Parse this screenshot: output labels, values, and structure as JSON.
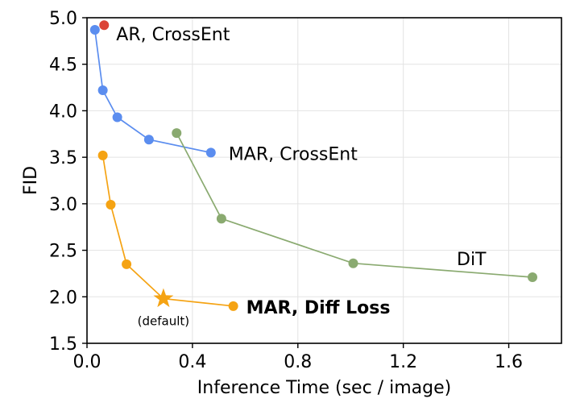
{
  "chart_data": {
    "type": "line",
    "xlabel": "Inference Time (sec / image)",
    "ylabel": "FID",
    "xlim": [
      0.0,
      1.8
    ],
    "ylim": [
      1.5,
      5.0
    ],
    "xticks": [
      "0.0",
      "0.4",
      "0.8",
      "1.2",
      "1.6"
    ],
    "yticks": [
      "1.5",
      "2.0",
      "2.5",
      "3.0",
      "3.5",
      "4.0",
      "4.5",
      "5.0"
    ],
    "grid": true,
    "series": [
      {
        "name": "AR, CrossEnt",
        "color": "#db4437",
        "label_weight": "normal",
        "points": [
          [
            0.065,
            4.92
          ]
        ]
      },
      {
        "name": "MAR, CrossEnt",
        "color": "#5b8def",
        "label_weight": "normal",
        "points": [
          [
            0.03,
            4.87
          ],
          [
            0.06,
            4.22
          ],
          [
            0.115,
            3.93
          ],
          [
            0.235,
            3.69
          ],
          [
            0.47,
            3.55
          ]
        ]
      },
      {
        "name": "DiT",
        "color": "#8aaa70",
        "label_weight": "normal",
        "points": [
          [
            0.34,
            3.76
          ],
          [
            0.51,
            2.84
          ],
          [
            1.01,
            2.36
          ],
          [
            1.69,
            2.21
          ]
        ]
      },
      {
        "name": "MAR, Diff Loss",
        "color": "#f5a313",
        "label_weight": "bold",
        "points": [
          [
            0.06,
            3.52
          ],
          [
            0.09,
            2.99
          ],
          [
            0.15,
            2.35
          ],
          [
            0.29,
            1.98
          ],
          [
            0.555,
            1.9
          ]
        ],
        "star_index": 3
      }
    ],
    "annotations": [
      {
        "text": "(default)"
      }
    ]
  }
}
